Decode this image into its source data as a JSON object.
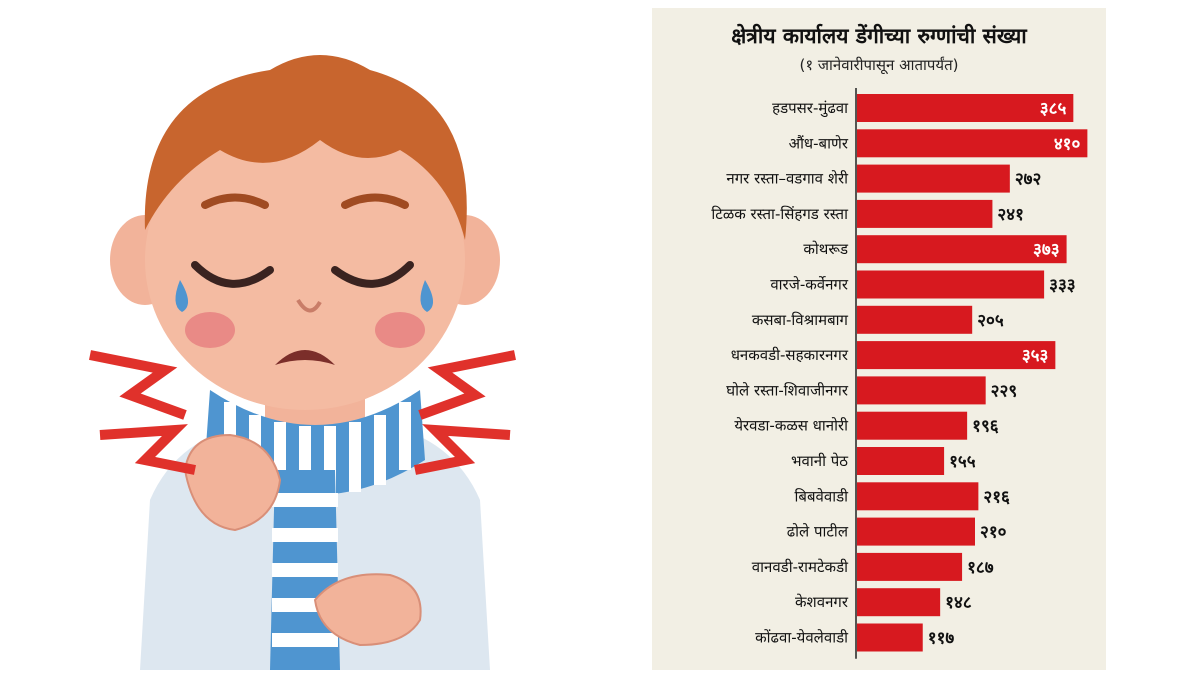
{
  "colors": {
    "bar": "#d7191f",
    "panel_bg": "#f2efe4",
    "axis": "#222222",
    "label_inside": "#ffffff",
    "label_outside": "#111111"
  },
  "illustration": {
    "subject": "sick boy with sore throat wearing striped scarf"
  },
  "chart_data": {
    "type": "bar",
    "orientation": "horizontal",
    "title": "क्षेत्रीय कार्यालय  डेंगीच्या रुग्णांची संख्या",
    "subtitle": "(१ जानेवारीपासून आतापर्यंत)",
    "categories": [
      "हडपसर-मुंढवा",
      "औंध-बाणेर",
      "नगर रस्ता–वडगाव शेरी",
      "टिळक रस्ता-सिंहगड रस्ता",
      "कोथरूड",
      "वारजे-कर्वेनगर",
      "कसबा-विश्रामबाग",
      "धनकवडी-सहकारनगर",
      "घोले रस्ता-शिवाजीनगर",
      "येरवडा-कळस धानोरी",
      "भवानी पेठ",
      "बिबवेवाडी",
      "ढोले पाटील",
      "वानवडी-रामटेकडी",
      "केशवनगर",
      "कोंढवा-येवलेवाडी"
    ],
    "values": [
      385,
      410,
      272,
      241,
      373,
      333,
      205,
      353,
      229,
      196,
      155,
      216,
      210,
      187,
      148,
      117
    ],
    "value_labels": [
      "३८५",
      "४१०",
      "२७२",
      "२४१",
      "३७३",
      "३३३",
      "२०५",
      "३५३",
      "२२९",
      "१९६",
      "१५५",
      "२१६",
      "२१०",
      "१८७",
      "१४८",
      "११७"
    ],
    "label_inside": [
      true,
      true,
      false,
      false,
      true,
      false,
      false,
      true,
      false,
      false,
      false,
      false,
      false,
      false,
      false,
      false
    ],
    "xlim": [
      0,
      420
    ],
    "grid": false,
    "legend": "none"
  }
}
